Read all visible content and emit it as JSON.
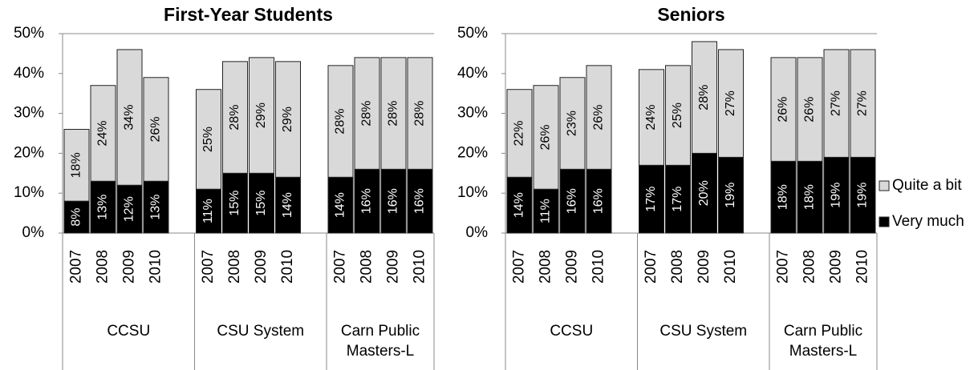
{
  "chart_data": [
    {
      "type": "stacked_bar",
      "title": "First-Year Students",
      "groups": [
        "CCSU",
        "CSU System",
        "Carn Public\nMasters-L"
      ],
      "categories": [
        "2007",
        "2008",
        "2009",
        "2010",
        "2007",
        "2008",
        "2009",
        "2010",
        "2007",
        "2008",
        "2009",
        "2010"
      ],
      "series": [
        {
          "color": "#000000",
          "values": [
            8,
            13,
            12,
            13,
            11,
            15,
            15,
            14,
            14,
            16,
            16,
            16
          ],
          "value_labels": [
            "8%",
            "13%",
            "12%",
            "13%",
            "11%",
            "15%",
            "15%",
            "14%",
            "14%",
            "16%",
            "16%",
            "16%"
          ]
        },
        {
          "color": "#d9d9d9",
          "values": [
            18,
            24,
            34,
            26,
            25,
            28,
            29,
            29,
            28,
            28,
            28,
            28
          ],
          "value_labels": [
            "18%",
            "24%",
            "34%",
            "26%",
            "25%",
            "28%",
            "29%",
            "29%",
            "28%",
            "28%",
            "28%",
            "28%"
          ]
        }
      ],
      "ylim": [
        0,
        50
      ],
      "yticks": [
        {
          "value": 0,
          "label": "0%"
        },
        {
          "value": 10,
          "label": "10%"
        },
        {
          "value": 20,
          "label": "20%"
        },
        {
          "value": 30,
          "label": "30%"
        },
        {
          "value": 40,
          "label": "40%"
        },
        {
          "value": 50,
          "label": "50%"
        }
      ],
      "grid": false
    },
    {
      "type": "stacked_bar",
      "title": "Seniors",
      "groups": [
        "CCSU",
        "CSU System",
        "Carn Public\nMasters-L"
      ],
      "categories": [
        "2007",
        "2008",
        "2009",
        "2010",
        "2007",
        "2008",
        "2009",
        "2010",
        "2007",
        "2008",
        "2009",
        "2010"
      ],
      "series": [
        {
          "name": "Very much",
          "color": "#000000",
          "values": [
            14,
            11,
            16,
            16,
            17,
            17,
            20,
            19,
            18,
            18,
            19,
            19
          ],
          "value_labels": [
            "14%",
            "11%",
            "16%",
            "16%",
            "17%",
            "17%",
            "20%",
            "19%",
            "18%",
            "18%",
            "19%",
            "19%"
          ]
        },
        {
          "name": "Quite a bit",
          "color": "#d9d9d9",
          "values": [
            22,
            26,
            23,
            26,
            24,
            25,
            28,
            27,
            26,
            26,
            27,
            27
          ],
          "value_labels": [
            "22%",
            "26%",
            "23%",
            "26%",
            "24%",
            "25%",
            "28%",
            "27%",
            "26%",
            "26%",
            "27%",
            "27%"
          ]
        }
      ],
      "ylim": [
        0,
        50
      ],
      "yticks": [
        {
          "value": 0,
          "label": "0%"
        },
        {
          "value": 10,
          "label": "10%"
        },
        {
          "value": 20,
          "label": "20%"
        },
        {
          "value": 30,
          "label": "30%"
        },
        {
          "value": 40,
          "label": "40%"
        },
        {
          "value": 50,
          "label": "50%"
        }
      ],
      "grid": false,
      "legend": "right"
    }
  ]
}
